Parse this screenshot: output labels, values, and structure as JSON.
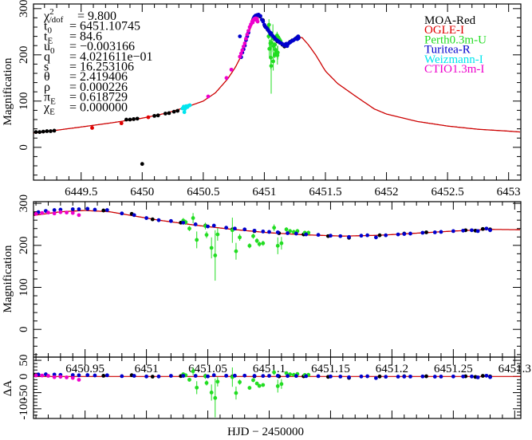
{
  "chart_data": {
    "type": "scatter",
    "xlabel": "HJD − 2450000",
    "ylabel": "Magnification",
    "residual_ylabel": "ΔA",
    "colors": {
      "model": "#cc0000"
    },
    "panels": [
      {
        "name": "full",
        "xlim": [
          6449.11,
          6453.1
        ],
        "ylim": [
          -71,
          310
        ],
        "xticks": [
          "6449.5",
          "6450",
          "6450.5",
          "6451",
          "6451.5",
          "6452",
          "6452.5",
          "6453"
        ],
        "yticks": [
          "0",
          "100",
          "200",
          "300"
        ]
      },
      {
        "name": "zoom",
        "xlim": [
          6450.908,
          6451.305
        ],
        "ylim": [
          -66,
          304
        ],
        "xticks": [
          "6450.95",
          "6451",
          "6451.05",
          "6451.1",
          "6451.15",
          "6451.2",
          "6451.25",
          "6451.3"
        ],
        "yticks": [
          "0",
          "100",
          "200",
          "300"
        ]
      },
      {
        "name": "residual",
        "xlim": [
          6450.908,
          6451.305
        ],
        "ylim": [
          -130,
          60
        ],
        "yticks": [
          "50",
          "0",
          "-50",
          "-100"
        ]
      }
    ],
    "parameters": [
      {
        "sym": "χ",
        "sup": "2",
        "sub": "/dof",
        "val": "= 9.800"
      },
      {
        "sym": "t",
        "sub": "0",
        "val": "= 6451.10745"
      },
      {
        "sym": "t",
        "sub": "E",
        "val": "= 84.6"
      },
      {
        "sym": "u",
        "sub": "0",
        "val": "= −0.003166"
      },
      {
        "sym": "q",
        "val": "= 4.021611e−01"
      },
      {
        "sym": "s",
        "val": "= 16.253106"
      },
      {
        "sym": "θ",
        "val": "= 2.419406"
      },
      {
        "sym": "ρ",
        "val": "= 0.000226"
      },
      {
        "sym": "π",
        "sub": "E",
        "val": "= 0.618729"
      },
      {
        "sym": "χ",
        "sub": "E",
        "val": "= 0.000000"
      }
    ],
    "model": [
      [
        6449.11,
        31
      ],
      [
        6449.3,
        37
      ],
      [
        6449.5,
        44
      ],
      [
        6449.75,
        53
      ],
      [
        6450,
        63
      ],
      [
        6450.2,
        74
      ],
      [
        6450.35,
        86
      ],
      [
        6450.5,
        100
      ],
      [
        6450.6,
        118
      ],
      [
        6450.7,
        148
      ],
      [
        6450.76,
        172
      ],
      [
        6450.8,
        192
      ],
      [
        6450.84,
        222
      ],
      [
        6450.88,
        254
      ],
      [
        6450.91,
        272
      ],
      [
        6450.93,
        280
      ],
      [
        6450.95,
        283
      ],
      [
        6450.97,
        280
      ],
      [
        6450.99,
        270
      ],
      [
        6451.01,
        260
      ],
      [
        6451.04,
        248
      ],
      [
        6451.07,
        238
      ],
      [
        6451.1,
        230
      ],
      [
        6451.13,
        225
      ],
      [
        6451.16,
        222
      ],
      [
        6451.19,
        224
      ],
      [
        6451.22,
        229
      ],
      [
        6451.25,
        234
      ],
      [
        6451.28,
        238
      ],
      [
        6451.31,
        237
      ],
      [
        6451.36,
        222
      ],
      [
        6451.42,
        200
      ],
      [
        6451.5,
        165
      ],
      [
        6451.6,
        138
      ],
      [
        6451.75,
        110
      ],
      [
        6451.9,
        83
      ],
      [
        6452,
        72
      ],
      [
        6452.25,
        56
      ],
      [
        6452.5,
        46
      ],
      [
        6452.75,
        39
      ],
      [
        6453,
        35
      ],
      [
        6453.1,
        33
      ]
    ],
    "series": [
      {
        "name": "MOA-Red",
        "color": "#000000",
        "points": [
          [
            6449.13,
            33
          ],
          [
            6449.16,
            33
          ],
          [
            6449.19,
            34
          ],
          [
            6449.22,
            35
          ],
          [
            6449.25,
            35
          ],
          [
            6449.28,
            36
          ],
          [
            6449.87,
            60
          ],
          [
            6449.9,
            60
          ],
          [
            6449.93,
            61
          ],
          [
            6449.96,
            62
          ],
          [
            6450.1,
            68
          ],
          [
            6450.13,
            69
          ],
          [
            6450.19,
            73
          ],
          [
            6450.22,
            74
          ],
          [
            6450.26,
            77
          ],
          [
            6450.29,
            79
          ],
          [
            6450.0,
            -36
          ],
          [
            6450.908,
            276
          ],
          [
            6450.965,
            283
          ],
          [
            6450.988,
            275
          ],
          [
            6451.005,
            262
          ],
          [
            6451.028,
            254
          ],
          [
            6451.048,
            247
          ],
          [
            6451.07,
            238
          ],
          [
            6451.088,
            234
          ],
          [
            6451.108,
            229
          ],
          [
            6451.128,
            226
          ],
          [
            6451.148,
            222
          ],
          [
            6451.165,
            218
          ],
          [
            6451.19,
            224
          ],
          [
            6451.21,
            228
          ],
          [
            6451.228,
            231
          ],
          [
            6451.26,
            236
          ],
          [
            6451.268,
            235
          ],
          [
            6451.274,
            239
          ],
          [
            6451.28,
            238
          ]
        ]
      },
      {
        "name": "OGLE-I",
        "color": "#e00000",
        "points": [
          [
            6449.59,
            42
          ],
          [
            6449.83,
            52
          ],
          [
            6450.05,
            65
          ]
        ]
      },
      {
        "name": "Perth0.3m-U",
        "color": "#22dd22",
        "points": [
          [
            6451.03,
            259,
            6
          ],
          [
            6451.032,
            255,
            6
          ],
          [
            6451.035,
            240,
            6
          ],
          [
            6451.038,
            265,
            12
          ],
          [
            6451.041,
            213,
            20
          ],
          [
            6451.048,
            246,
            8
          ],
          [
            6451.049,
            225,
            8
          ],
          [
            6451.053,
            194,
            25
          ],
          [
            6451.056,
            176,
            60
          ],
          [
            6451.058,
            226,
            15
          ],
          [
            6451.07,
            236,
            30
          ],
          [
            6451.073,
            186,
            20
          ],
          [
            6451.076,
            219,
            8
          ],
          [
            6451.084,
            199,
            6
          ],
          [
            6451.087,
            222,
            6
          ],
          [
            6451.09,
            211,
            6
          ],
          [
            6451.092,
            203,
            6
          ],
          [
            6451.095,
            205,
            6
          ],
          [
            6451.104,
            242,
            8
          ],
          [
            6451.107,
            199,
            20
          ],
          [
            6451.11,
            205,
            15
          ],
          [
            6451.114,
            238,
            5
          ],
          [
            6451.117,
            234,
            5
          ],
          [
            6451.12,
            232,
            5
          ],
          [
            6451.123,
            234,
            5
          ],
          [
            6451.129,
            230,
            5
          ],
          [
            6451.132,
            230,
            5
          ]
        ]
      },
      {
        "name": "Turitea-R",
        "color": "#0000cc",
        "points": [
          [
            6450.8,
            240
          ],
          [
            6450.81,
            195
          ],
          [
            6450.82,
            205
          ],
          [
            6450.83,
            212
          ],
          [
            6450.84,
            220
          ],
          [
            6450.85,
            232
          ],
          [
            6450.86,
            240
          ],
          [
            6450.87,
            248
          ],
          [
            6450.912,
            279
          ],
          [
            6450.918,
            282
          ],
          [
            6450.925,
            284
          ],
          [
            6450.93,
            285
          ],
          [
            6450.94,
            286
          ],
          [
            6450.945,
            286
          ],
          [
            6450.952,
            287
          ],
          [
            6450.958,
            285
          ],
          [
            6450.968,
            284
          ],
          [
            6450.98,
            276
          ],
          [
            6450.99,
            272
          ],
          [
            6451.0,
            265
          ],
          [
            6451.01,
            260
          ],
          [
            6451.02,
            258
          ],
          [
            6451.03,
            254
          ],
          [
            6451.04,
            250
          ],
          [
            6451.05,
            245
          ],
          [
            6451.055,
            247
          ],
          [
            6451.065,
            242
          ],
          [
            6451.072,
            240
          ],
          [
            6451.08,
            238
          ],
          [
            6451.088,
            235
          ],
          [
            6451.095,
            233
          ],
          [
            6451.1,
            232
          ],
          [
            6451.107,
            231
          ],
          [
            6451.115,
            229
          ],
          [
            6451.122,
            228
          ],
          [
            6451.13,
            226
          ],
          [
            6451.14,
            225
          ],
          [
            6451.15,
            223
          ],
          [
            6451.158,
            222
          ],
          [
            6451.165,
            220
          ],
          [
            6451.175,
            223
          ],
          [
            6451.18,
            224
          ],
          [
            6451.187,
            219
          ],
          [
            6451.195,
            224
          ],
          [
            6451.205,
            226
          ],
          [
            6451.21,
            227
          ],
          [
            6451.215,
            228
          ],
          [
            6451.225,
            230
          ],
          [
            6451.235,
            231
          ],
          [
            6451.24,
            232
          ],
          [
            6451.25,
            234
          ],
          [
            6451.258,
            235
          ],
          [
            6451.265,
            236
          ],
          [
            6451.27,
            234
          ],
          [
            6451.277,
            240
          ],
          [
            6451.28,
            236
          ]
        ]
      },
      {
        "name": "Weizmann-I",
        "color": "#00e5ee",
        "points": [
          [
            6450.33,
            84
          ],
          [
            6450.34,
            88
          ],
          [
            6450.345,
            76
          ],
          [
            6450.35,
            83
          ],
          [
            6450.36,
            89
          ],
          [
            6450.37,
            87
          ],
          [
            6450.38,
            90
          ],
          [
            6450.39,
            91
          ]
        ]
      },
      {
        "name": "CTIO1.3m-I",
        "color": "#ee00cc",
        "points": [
          [
            6450.54,
            110
          ],
          [
            6450.69,
            150
          ],
          [
            6450.73,
            168
          ],
          [
            6450.8,
            196
          ],
          [
            6450.81,
            203
          ],
          [
            6450.82,
            210
          ],
          [
            6450.83,
            218
          ],
          [
            6450.84,
            225
          ],
          [
            6450.85,
            235
          ],
          [
            6450.86,
            244
          ],
          [
            6450.87,
            252
          ],
          [
            6450.88,
            260
          ],
          [
            6450.89,
            266
          ],
          [
            6450.9,
            272
          ],
          [
            6450.905,
            270
          ],
          [
            6450.91,
            275
          ],
          [
            6450.915,
            277
          ],
          [
            6450.92,
            278
          ],
          [
            6450.925,
            276
          ],
          [
            6450.93,
            279
          ],
          [
            6450.935,
            278
          ],
          [
            6450.94,
            277
          ],
          [
            6450.945,
            272
          ]
        ]
      }
    ]
  }
}
